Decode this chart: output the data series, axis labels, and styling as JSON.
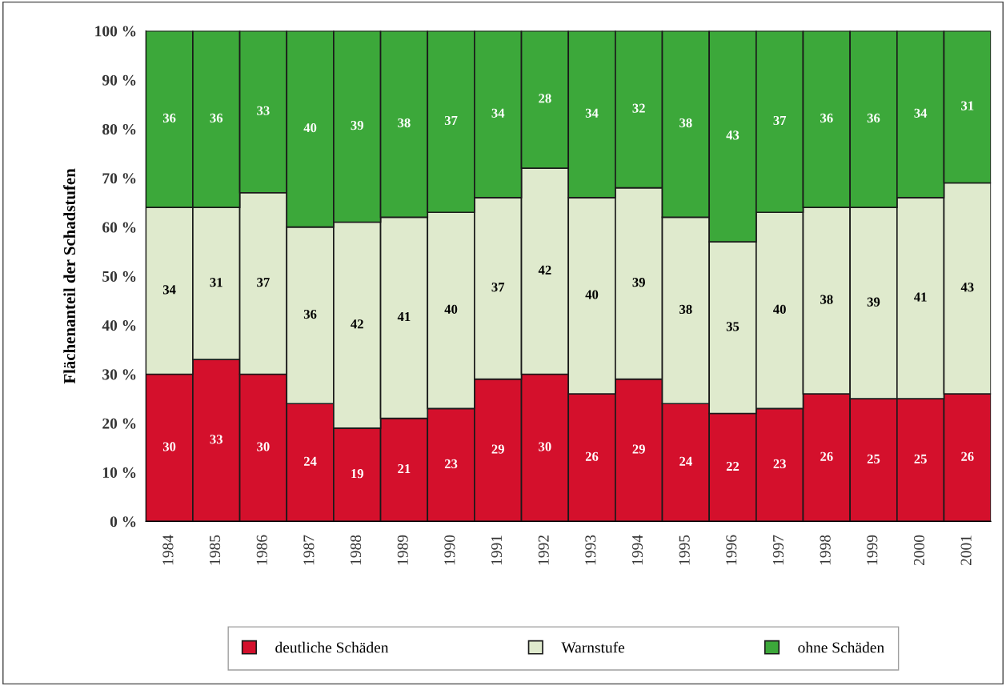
{
  "chart_data": {
    "type": "bar",
    "stacked": true,
    "ylabel": "Flächenanteil der Schadstufen",
    "categories": [
      "1984",
      "1985",
      "1986",
      "1987",
      "1988",
      "1989",
      "1990",
      "1991",
      "1992",
      "1993",
      "1994",
      "1995",
      "1996",
      "1997",
      "1998",
      "1999",
      "2000",
      "2001"
    ],
    "series": [
      {
        "name": "deutliche Schäden",
        "color": "#d4102c",
        "values": [
          30,
          33,
          30,
          24,
          19,
          21,
          23,
          29,
          30,
          26,
          29,
          24,
          22,
          23,
          26,
          25,
          25,
          26
        ]
      },
      {
        "name": "Warnstufe",
        "color": "#dfeacd",
        "values": [
          34,
          31,
          37,
          36,
          42,
          41,
          40,
          37,
          42,
          40,
          39,
          38,
          35,
          40,
          38,
          39,
          41,
          43
        ]
      },
      {
        "name": "ohne Schäden",
        "color": "#3ca83a",
        "values": [
          36,
          36,
          33,
          40,
          39,
          38,
          37,
          34,
          28,
          34,
          32,
          38,
          43,
          37,
          36,
          36,
          34,
          31
        ]
      }
    ],
    "ylim": [
      0,
      100
    ],
    "yticks": [
      {
        "value": 0,
        "label": "0 %"
      },
      {
        "value": 10,
        "label": "10 %"
      },
      {
        "value": 20,
        "label": "20 %"
      },
      {
        "value": 30,
        "label": "30 %"
      },
      {
        "value": 40,
        "label": "40 %"
      },
      {
        "value": 50,
        "label": "50 %"
      },
      {
        "value": 60,
        "label": "60 %"
      },
      {
        "value": 70,
        "label": "70 %"
      },
      {
        "value": 80,
        "label": "80 %"
      },
      {
        "value": 90,
        "label": "90 %"
      },
      {
        "value": 100,
        "label": "100 %"
      }
    ],
    "data_labels": true,
    "grid": false,
    "legend": "bottom"
  }
}
